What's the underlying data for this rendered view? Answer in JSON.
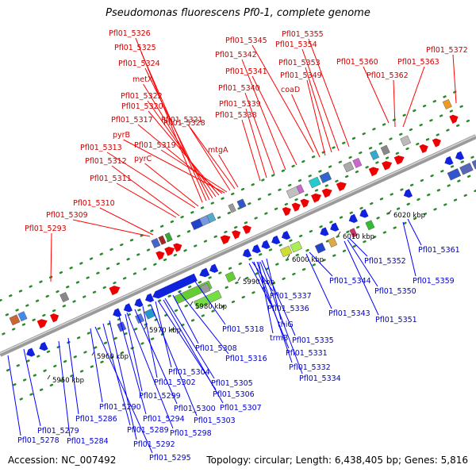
{
  "title": "Pseudomonas fluorescens Pf0-1, complete genome",
  "footer": {
    "accession": "Accession: NC_007492",
    "summary": "Topology: circular; Length: 6,438,405 bp; Genes: 5,816"
  },
  "colors": {
    "top_label": "#cc0000",
    "bottom_label": "#0000cc",
    "backbone": "#9a9a9a",
    "tick": "#2a8a2a",
    "leader_top": "#ff0000",
    "leader_bottom": "#0000ff"
  },
  "ruler": [
    "5950 kbp",
    "5960 kbp",
    "5970 kbp",
    "5980 kbp",
    "5990 kbp",
    "6000 kbp",
    "6010 kbp",
    "6020 kbp"
  ],
  "top_labels": [
    "Pfl01_5326",
    "Pfl01_5325",
    "Pfl01_5324",
    "metX",
    "Pfl01_5322",
    "Pfl01_5320",
    "Pfl01_5317",
    "Pfl01_5321",
    "Pfl01_5328",
    "pyrB",
    "Pfl01_5319",
    "Pfl01_5313",
    "pyrC",
    "Pfl01_5312",
    "Pfl01_5311",
    "mtgA",
    "Pfl01_5310",
    "Pfl01_5309",
    "Pfl01_5293",
    "Pfl01_5345",
    "Pfl01_5355",
    "Pfl01_5354",
    "Pfl01_5342",
    "Pfl01_5353",
    "Pfl01_5360",
    "Pfl01_5363",
    "Pfl01_5372",
    "Pfl01_5341",
    "Pfl01_5349",
    "Pfl01_5362",
    "Pfl01_5340",
    "coaD",
    "Pfl01_5339",
    "Pfl01_5338"
  ],
  "bottom_labels": [
    "Pfl01_5318",
    "Pfl01_5308",
    "Pfl01_5316",
    "Pfl01_5304",
    "Pfl01_5302",
    "Pfl01_5305",
    "Pfl01_5299",
    "Pfl01_5306",
    "Pfl01_5300",
    "Pfl01_5307",
    "Pfl01_5290",
    "Pfl01_5294",
    "Pfl01_5303",
    "Pfl01_5286",
    "Pfl01_5298",
    "Pfl01_5279",
    "Pfl01_5289",
    "Pfl01_5278",
    "Pfl01_5284",
    "Pfl01_5292",
    "Pfl01_5295",
    "Pfl01_5337",
    "Pfl01_5336",
    "thiG",
    "Pfl01_5335",
    "trmB",
    "Pfl01_5331",
    "Pfl01_5332",
    "Pfl01_5334",
    "Pfl01_5344",
    "Pfl01_5343",
    "Pfl01_5352",
    "Pfl01_5350",
    "Pfl01_5351",
    "Pfl01_5361",
    "Pfl01_5359"
  ]
}
